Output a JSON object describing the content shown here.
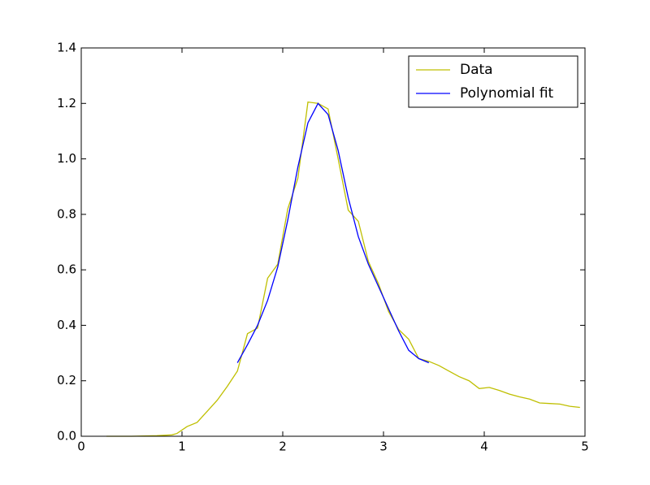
{
  "chart_data": {
    "type": "line",
    "xlim": [
      0,
      5
    ],
    "xticks": [
      0,
      1,
      2,
      3,
      4,
      5
    ],
    "ylim": [
      0,
      1.4
    ],
    "yticks": [
      {
        "value": 0,
        "label": "0.0"
      },
      {
        "value": 0.2,
        "label": "0.2"
      },
      {
        "value": 0.4,
        "label": "0.4"
      },
      {
        "value": 0.6,
        "label": "0.6"
      },
      {
        "value": 0.8,
        "label": "0.8"
      },
      {
        "value": 1.0,
        "label": "1.0"
      },
      {
        "value": 1.2,
        "label": "1.2"
      },
      {
        "value": 1.4,
        "label": "1.4"
      }
    ],
    "grid": false,
    "legend": "upper right",
    "series": [
      {
        "name": "Data",
        "color": "#bfbf00",
        "x": [
          0.25,
          0.5,
          0.75,
          0.9,
          0.95,
          1.05,
          1.15,
          1.25,
          1.35,
          1.45,
          1.55,
          1.65,
          1.75,
          1.85,
          1.95,
          2.05,
          2.15,
          2.25,
          2.35,
          2.45,
          2.55,
          2.65,
          2.75,
          2.85,
          2.95,
          3.05,
          3.15,
          3.25,
          3.35,
          3.45,
          3.55,
          3.65,
          3.75,
          3.85,
          3.95,
          4.05,
          4.15,
          4.25,
          4.35,
          4.45,
          4.55,
          4.65,
          4.75,
          4.85,
          4.95
        ],
        "values": [
          0.0,
          0.0,
          0.002,
          0.005,
          0.01,
          0.035,
          0.05,
          0.09,
          0.13,
          0.18,
          0.235,
          0.37,
          0.39,
          0.57,
          0.62,
          0.82,
          0.93,
          1.205,
          1.2,
          1.18,
          1.0,
          0.815,
          0.775,
          0.63,
          0.55,
          0.45,
          0.385,
          0.35,
          0.28,
          0.27,
          0.255,
          0.235,
          0.215,
          0.2,
          0.172,
          0.176,
          0.165,
          0.152,
          0.142,
          0.134,
          0.12,
          0.118,
          0.116,
          0.108,
          0.104
        ]
      },
      {
        "name": "Polynomial fit",
        "color": "#0000ff",
        "x": [
          1.55,
          1.65,
          1.75,
          1.85,
          1.95,
          2.05,
          2.15,
          2.25,
          2.35,
          2.45,
          2.55,
          2.65,
          2.75,
          2.85,
          2.95,
          3.05,
          3.15,
          3.25,
          3.35,
          3.45
        ],
        "values": [
          0.265,
          0.33,
          0.4,
          0.49,
          0.61,
          0.78,
          0.97,
          1.13,
          1.2,
          1.16,
          1.03,
          0.86,
          0.72,
          0.62,
          0.54,
          0.46,
          0.38,
          0.31,
          0.28,
          0.265
        ]
      }
    ]
  }
}
